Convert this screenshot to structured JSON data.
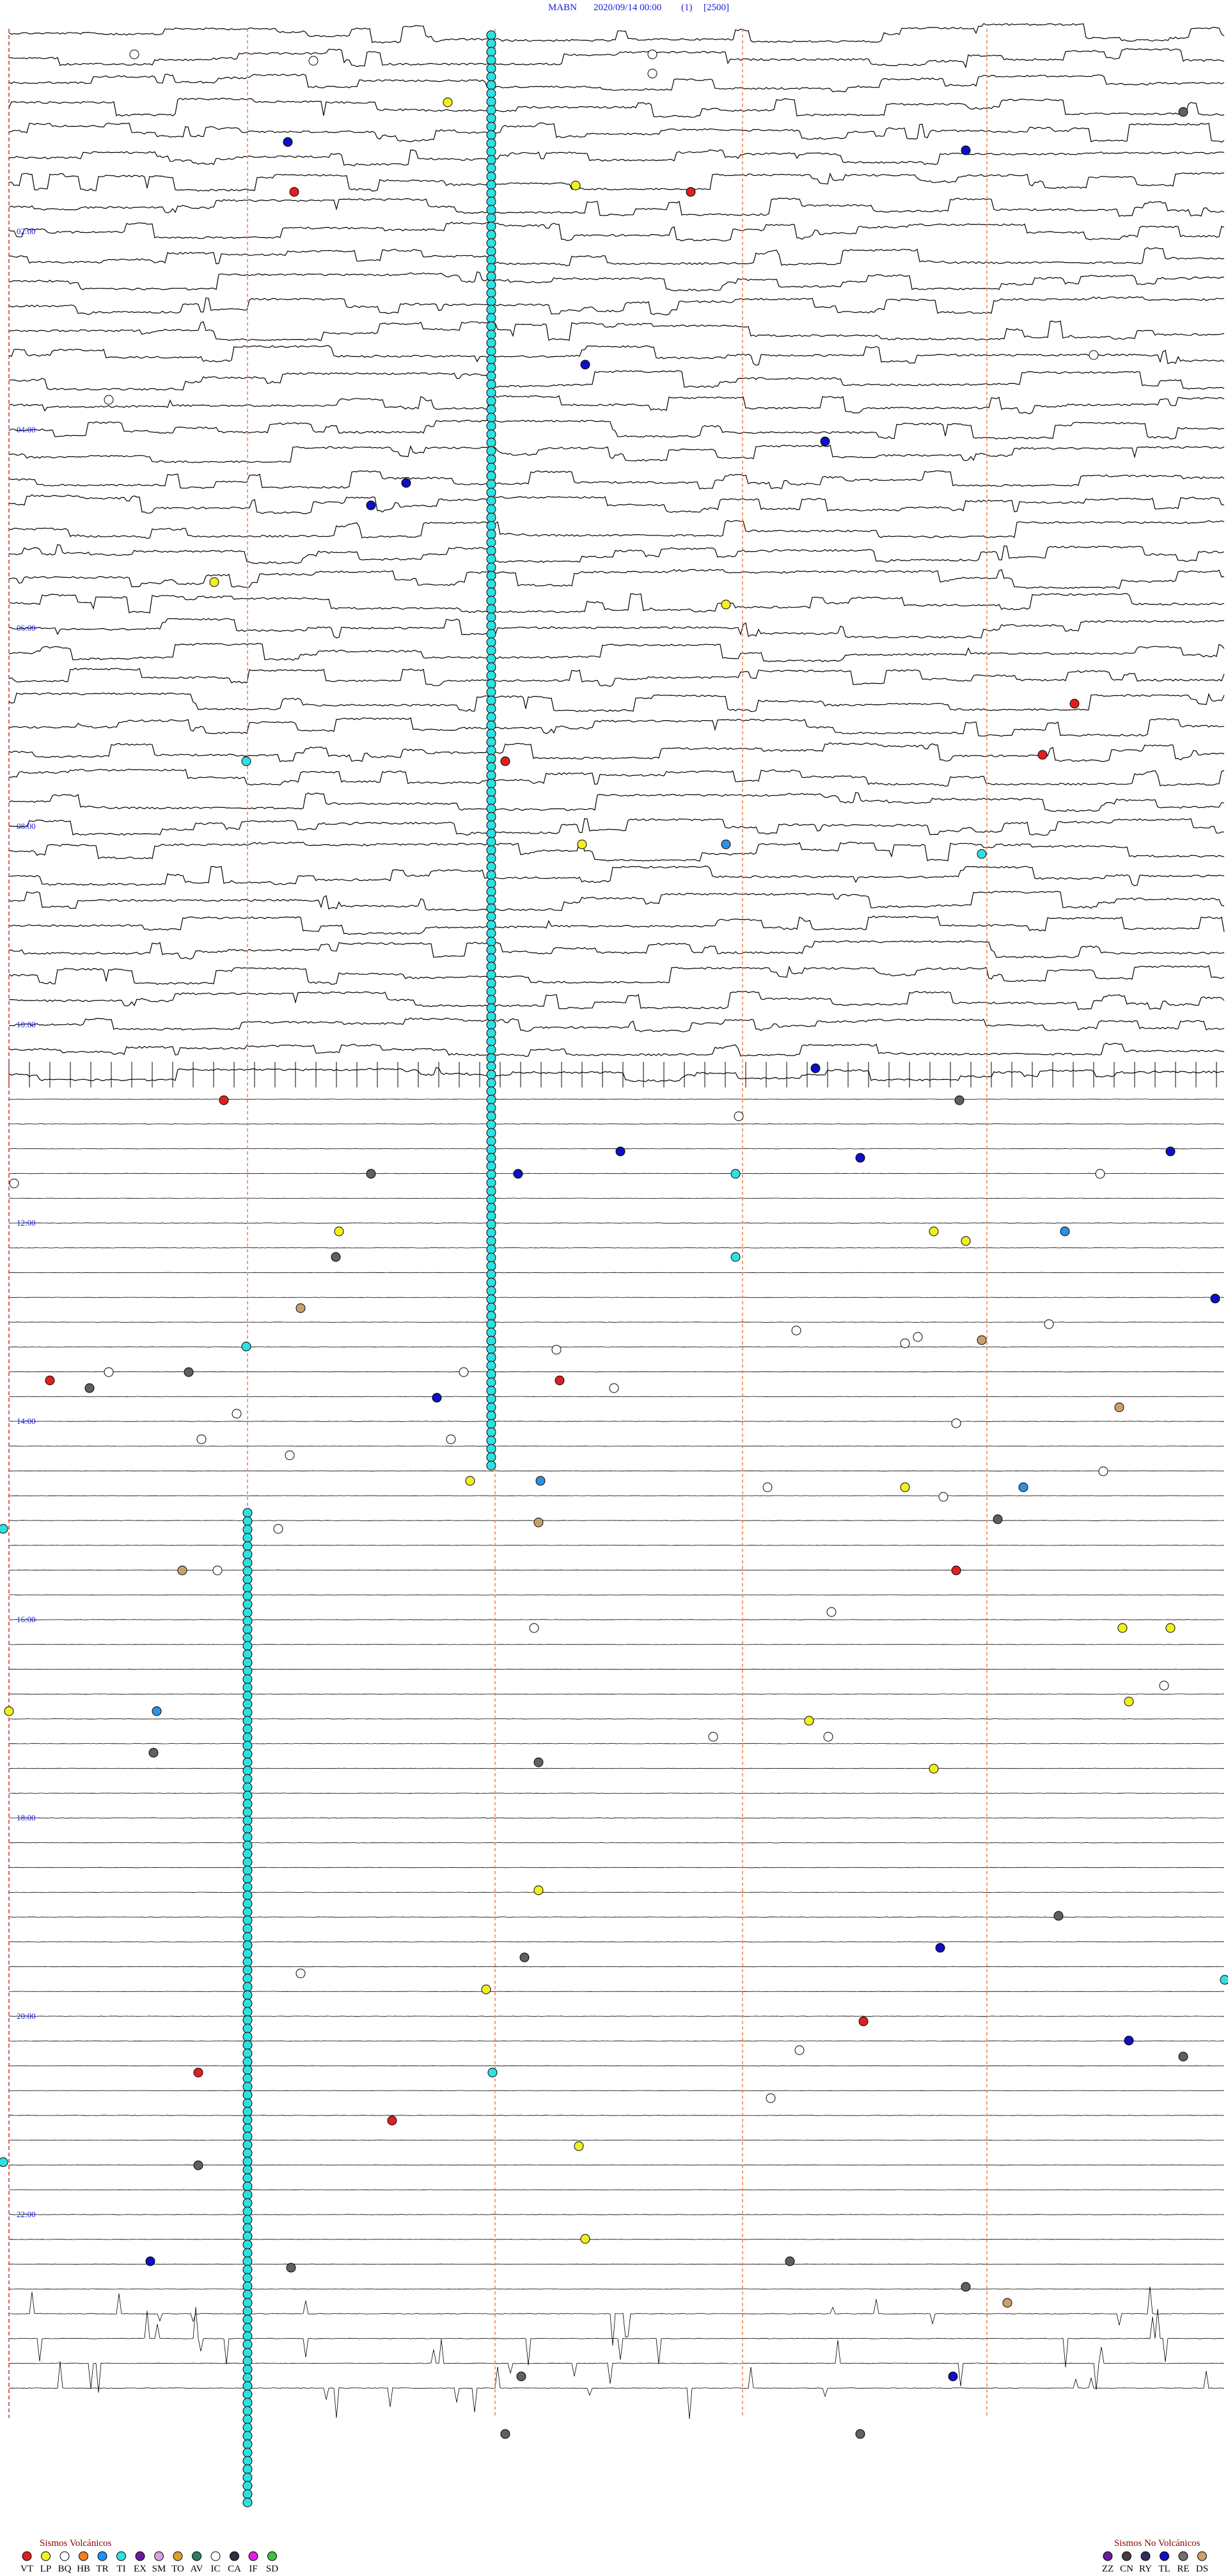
{
  "header": {
    "station": "MABN",
    "datetime": "2020/09/14 00:00",
    "component": "(1)",
    "scale": "[2500]"
  },
  "hour_labels": [
    "02:00",
    "04:00",
    "06:00",
    "08:00",
    "10:00",
    "12:00",
    "14:00",
    "16:00",
    "18:00",
    "20:00",
    "22:00"
  ],
  "legend": {
    "volcanic": {
      "title": "Sismos Volcánicos",
      "codes": [
        "VT",
        "LP",
        "BQ",
        "HB",
        "TR",
        "TI",
        "EX",
        "SM",
        "TO",
        "AV",
        "IC",
        "CA",
        "IF",
        "SD"
      ]
    },
    "non_volcanic": {
      "title": "Sismos No Volcánicos",
      "codes": [
        "ZZ",
        "CN",
        "RY",
        "TL",
        "RE",
        "DS"
      ]
    }
  }
}
